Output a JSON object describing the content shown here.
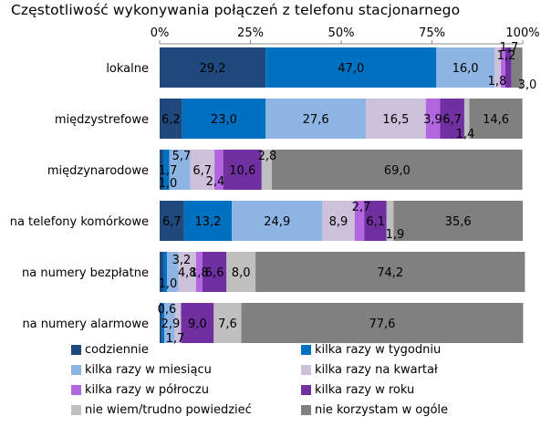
{
  "chart_data": {
    "type": "bar",
    "orientation": "horizontal",
    "stacked": true,
    "title": "Częstotliwość wykonywania połączeń z telefonu stacjonarnego",
    "xlim": [
      0,
      100
    ],
    "x_tick_labels": [
      "0%",
      "25%",
      "50%",
      "75%",
      "100%"
    ],
    "categories": [
      "lokalne",
      "międzystrefowe",
      "międzynarodowe",
      "na telefony komórkowe",
      "na numery bezpłatne",
      "na numery alarmowe"
    ],
    "series": [
      {
        "name": "codziennie",
        "color": "#1F497D",
        "values": [
          29.2,
          6.2,
          1.0,
          6.7,
          1.0,
          0.6
        ],
        "labels": [
          "29,2",
          "6,2",
          "1,0",
          "6,7",
          "1,0",
          "0,6"
        ]
      },
      {
        "name": "kilka razy w tygodniu",
        "color": "#0070C0",
        "values": [
          47.0,
          23.0,
          1.7,
          13.2,
          1.0,
          0.7
        ],
        "labels": [
          "47,0",
          "23,0",
          "1,7",
          "13,2",
          "",
          ""
        ]
      },
      {
        "name": "kilka razy w miesiącu",
        "color": "#8DB4E2",
        "values": [
          16.0,
          27.6,
          5.7,
          24.9,
          3.2,
          2.9
        ],
        "labels": [
          "16,0",
          "27,6",
          "5,7",
          "24,9",
          "3,2",
          "2,9"
        ]
      },
      {
        "name": "kilka razy na kwartał",
        "color": "#CCC0DA",
        "values": [
          1.8,
          16.5,
          6.7,
          8.9,
          4.8,
          1.7
        ],
        "labels": [
          "1,8",
          "16,5",
          "6,7",
          "8,9",
          "4,8",
          "1,7"
        ]
      },
      {
        "name": "kilka razy w półroczu",
        "color": "#B266E0",
        "values": [
          1.2,
          3.9,
          2.4,
          2.7,
          1.8,
          0.0
        ],
        "labels": [
          "1,2",
          "3,9",
          "2,4",
          "2,7",
          "1,8",
          ""
        ]
      },
      {
        "name": "kilka razy w roku",
        "color": "#7030A0",
        "values": [
          1.7,
          6.7,
          10.6,
          6.1,
          6.6,
          9.0
        ],
        "labels": [
          "1,7",
          "6,7",
          "10,6",
          "6,1",
          "6,6",
          "9,0"
        ]
      },
      {
        "name": "nie wiem/trudno powiedzieć",
        "color": "#BFBFBF",
        "values": [
          0.0,
          1.4,
          2.8,
          1.9,
          8.0,
          7.6
        ],
        "labels": [
          "",
          "1,4",
          "2,8",
          "1,9",
          "8,0",
          "7,6"
        ]
      },
      {
        "name": "nie korzystam w ogóle",
        "color": "#808080",
        "values": [
          3.0,
          14.6,
          69.0,
          35.6,
          74.2,
          77.6
        ],
        "labels": [
          "3,0",
          "14,6",
          "69,0",
          "35,6",
          "74,2",
          "77,6"
        ]
      }
    ]
  }
}
